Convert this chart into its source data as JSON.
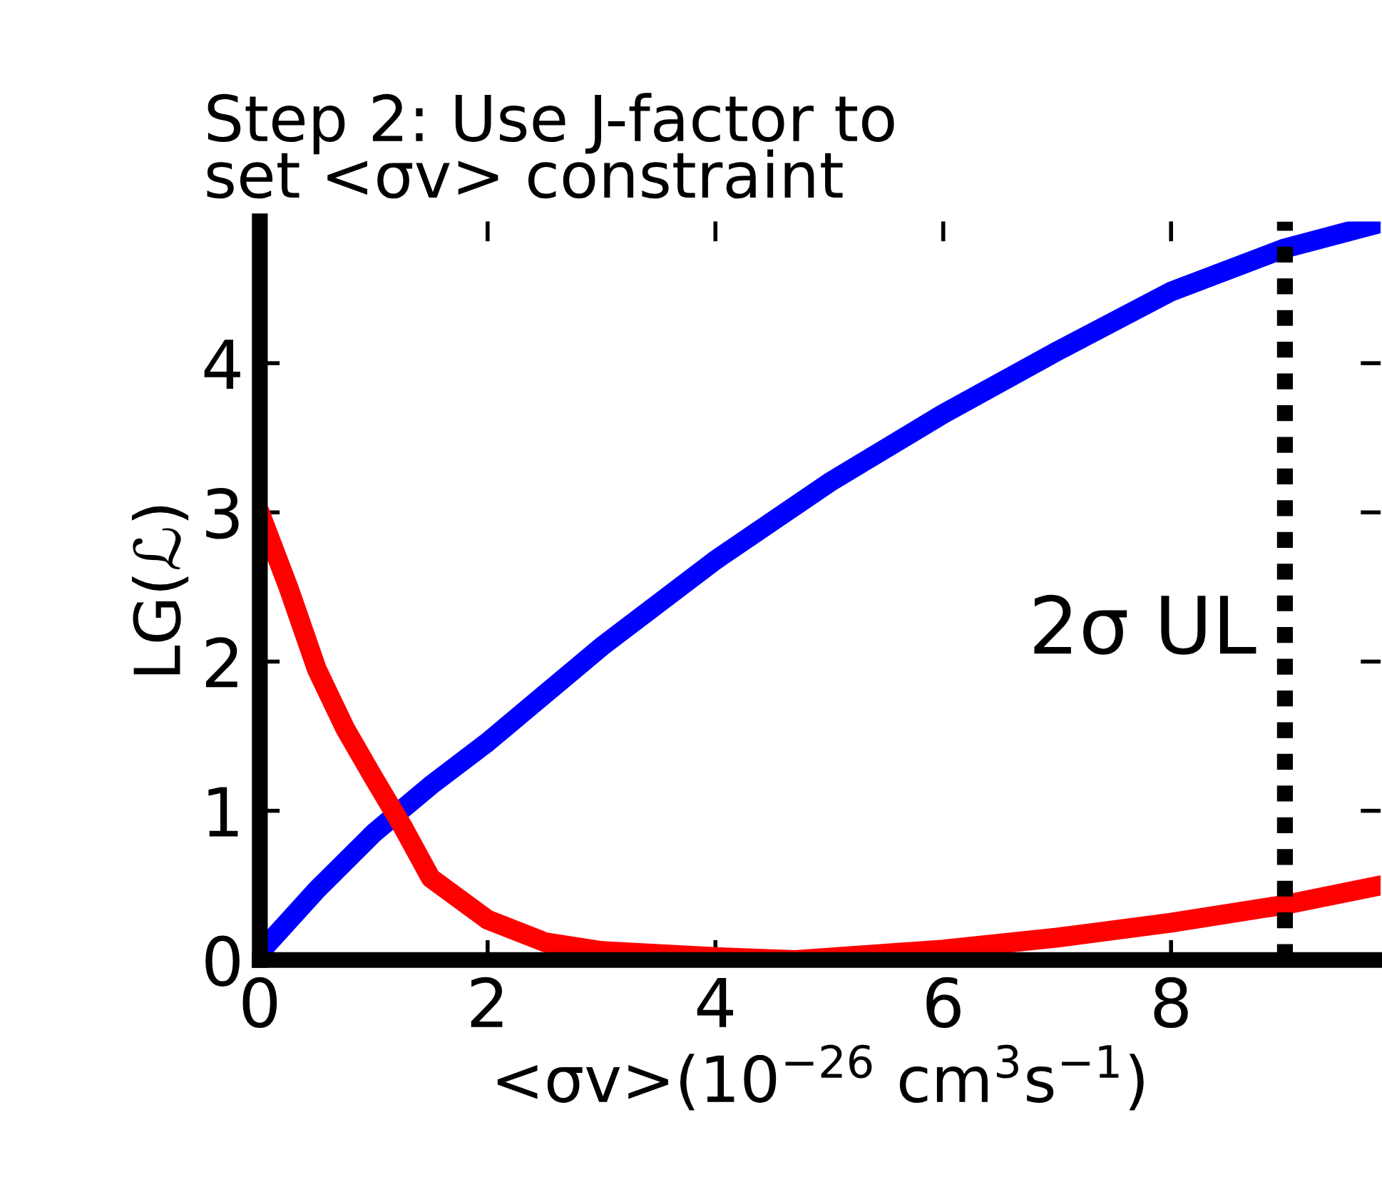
{
  "chart_data": {
    "type": "line",
    "title": "Step 2: Use J-factor to\nset <σv> constraint",
    "xlabel": "<σv>(10$^{−26}$ cm$^{3}$s$^{−1}$)",
    "ylabel": "LG(ℒ)",
    "xlim": [
      0,
      9.84
    ],
    "ylim": [
      0,
      4.95
    ],
    "xticks": [
      0,
      2,
      4,
      6,
      8
    ],
    "yticks": [
      0,
      1,
      2,
      3,
      4
    ],
    "grid": false,
    "legend": false,
    "line_style": "solid",
    "marker": "none",
    "series": [
      {
        "color": "#0000ff",
        "x": [
          0,
          0.5,
          1,
          1.5,
          2,
          3,
          4,
          5,
          6,
          7,
          8,
          9,
          9.84
        ],
        "values": [
          0.05,
          0.47,
          0.85,
          1.17,
          1.46,
          2.1,
          2.68,
          3.2,
          3.66,
          4.08,
          4.48,
          4.77,
          4.94
        ]
      },
      {
        "color": "#ff0000",
        "x": [
          0,
          0.25,
          0.5,
          0.75,
          1,
          1.25,
          1.5,
          2,
          2.5,
          3,
          4,
          4.7,
          6,
          7,
          8,
          9,
          9.84
        ],
        "values": [
          3.0,
          2.5,
          1.95,
          1.55,
          1.22,
          0.9,
          0.55,
          0.27,
          0.12,
          0.06,
          0.02,
          0.0,
          0.07,
          0.15,
          0.25,
          0.37,
          0.5
        ]
      }
    ],
    "ref_lines": [
      {
        "axis": "x",
        "value": 9,
        "label": "2σ UL",
        "color": "#000000",
        "line_style": "dotted"
      }
    ]
  }
}
